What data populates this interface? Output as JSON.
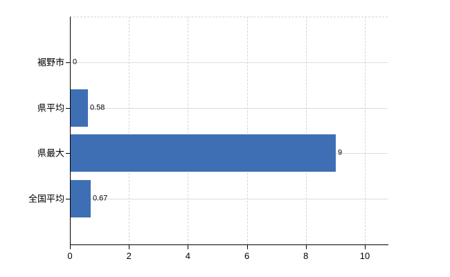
{
  "chart_data": {
    "type": "bar",
    "orientation": "horizontal",
    "title": "",
    "xlabel": "",
    "ylabel": "",
    "categories": [
      "裾野市",
      "県平均",
      "県最大",
      "全国平均"
    ],
    "values": [
      0,
      0.58,
      9,
      0.67
    ],
    "value_labels": [
      "0",
      "0.58",
      "9",
      "0.67"
    ],
    "x_ticks": [
      0,
      2,
      4,
      6,
      8,
      10
    ],
    "x_tick_labels": [
      "0",
      "2",
      "4",
      "6",
      "8",
      "10"
    ],
    "xlim": [
      0,
      10.77
    ],
    "grid": true,
    "legend": false,
    "bar_color": "#3e6fb4",
    "h_gridline_color": "#d9ddd9",
    "v_gridline_color": "#d6d2d6",
    "axis_color": "#000000",
    "background_color": "#ffffff"
  }
}
